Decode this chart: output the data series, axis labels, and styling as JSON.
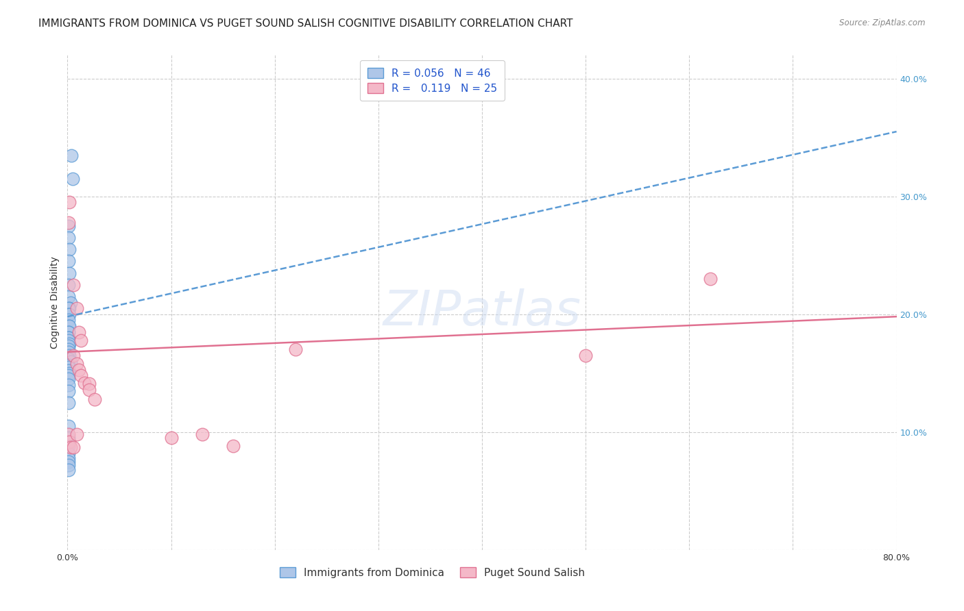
{
  "title": "IMMIGRANTS FROM DOMINICA VS PUGET SOUND SALISH COGNITIVE DISABILITY CORRELATION CHART",
  "source": "Source: ZipAtlas.com",
  "ylabel": "Cognitive Disability",
  "xlim": [
    0.0,
    0.8
  ],
  "ylim": [
    0.0,
    0.42
  ],
  "xticks": [
    0.0,
    0.1,
    0.2,
    0.3,
    0.4,
    0.5,
    0.6,
    0.7,
    0.8
  ],
  "yticks": [
    0.0,
    0.1,
    0.2,
    0.3,
    0.4
  ],
  "blue_R": 0.056,
  "blue_N": 46,
  "pink_R": 0.119,
  "pink_N": 25,
  "blue_color": "#aec6e8",
  "blue_edge": "#5b9bd5",
  "pink_color": "#f4b8c8",
  "pink_edge": "#e07090",
  "blue_line_color": "#5b9bd5",
  "pink_line_color": "#e07090",
  "watermark": "ZIPatlas",
  "blue_x": [
    0.004,
    0.005,
    0.001,
    0.001,
    0.002,
    0.001,
    0.002,
    0.001,
    0.001,
    0.003,
    0.002,
    0.001,
    0.001,
    0.002,
    0.001,
    0.001,
    0.002,
    0.001,
    0.001,
    0.001,
    0.001,
    0.001,
    0.002,
    0.001,
    0.001,
    0.001,
    0.002,
    0.001,
    0.003,
    0.001,
    0.001,
    0.001,
    0.002,
    0.001,
    0.001,
    0.001,
    0.001,
    0.001,
    0.001,
    0.001,
    0.001,
    0.001,
    0.001,
    0.001,
    0.001,
    0.001
  ],
  "blue_y": [
    0.335,
    0.315,
    0.275,
    0.265,
    0.255,
    0.245,
    0.235,
    0.225,
    0.215,
    0.21,
    0.205,
    0.205,
    0.2,
    0.2,
    0.195,
    0.19,
    0.19,
    0.185,
    0.185,
    0.18,
    0.18,
    0.178,
    0.175,
    0.173,
    0.17,
    0.168,
    0.165,
    0.162,
    0.16,
    0.157,
    0.155,
    0.152,
    0.15,
    0.148,
    0.145,
    0.14,
    0.135,
    0.125,
    0.105,
    0.095,
    0.088,
    0.082,
    0.078,
    0.075,
    0.072,
    0.068
  ],
  "pink_x": [
    0.002,
    0.001,
    0.006,
    0.009,
    0.011,
    0.013,
    0.006,
    0.009,
    0.011,
    0.013,
    0.016,
    0.021,
    0.021,
    0.026,
    0.001,
    0.002,
    0.003,
    0.006,
    0.009,
    0.22,
    0.62,
    0.5,
    0.13,
    0.1,
    0.16
  ],
  "pink_y": [
    0.295,
    0.278,
    0.225,
    0.205,
    0.185,
    0.178,
    0.165,
    0.158,
    0.153,
    0.148,
    0.142,
    0.141,
    0.136,
    0.128,
    0.098,
    0.092,
    0.087,
    0.087,
    0.098,
    0.17,
    0.23,
    0.165,
    0.098,
    0.095,
    0.088
  ],
  "blue_line_x0": 0.0,
  "blue_line_y0": 0.198,
  "blue_line_x1": 0.8,
  "blue_line_y1": 0.355,
  "pink_line_x0": 0.0,
  "pink_line_y0": 0.168,
  "pink_line_x1": 0.8,
  "pink_line_y1": 0.198,
  "background_color": "#ffffff",
  "grid_color": "#cccccc",
  "title_fontsize": 11,
  "axis_fontsize": 10,
  "tick_fontsize": 9,
  "legend_fontsize": 11
}
